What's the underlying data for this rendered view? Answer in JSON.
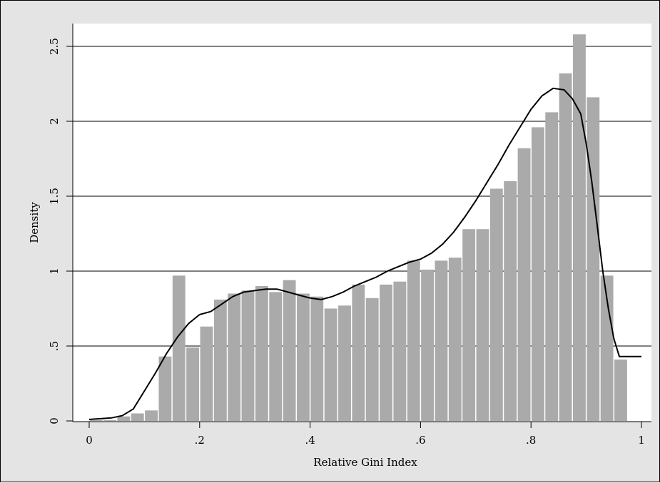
{
  "chart_data": {
    "type": "bar",
    "subtype": "histogram_with_kernel_density",
    "xlabel": "Relative Gini Index",
    "ylabel": "Density",
    "xlim": [
      0,
      1
    ],
    "ylim": [
      0,
      2.5
    ],
    "grid": true,
    "colors": {
      "bars": "#aaaaaa",
      "density_line": "#000000",
      "background": "#e4e4e4",
      "plot_area": "#ffffff"
    },
    "x_ticks": [
      {
        "value": 0,
        "label": "0"
      },
      {
        "value": 0.2,
        "label": ".2"
      },
      {
        "value": 0.4,
        "label": ".4"
      },
      {
        "value": 0.6,
        "label": ".6"
      },
      {
        "value": 0.8,
        "label": ".8"
      },
      {
        "value": 1,
        "label": "1"
      }
    ],
    "y_ticks": [
      {
        "value": 0,
        "label": "0"
      },
      {
        "value": 0.5,
        "label": ".5"
      },
      {
        "value": 1,
        "label": "1"
      },
      {
        "value": 1.5,
        "label": "1.5"
      },
      {
        "value": 2,
        "label": "2"
      },
      {
        "value": 2.5,
        "label": "2.5"
      }
    ],
    "bin_width": 0.025,
    "bins": [
      {
        "x": 0.0,
        "y": 0.005
      },
      {
        "x": 0.025,
        "y": 0.005
      },
      {
        "x": 0.05,
        "y": 0.03
      },
      {
        "x": 0.075,
        "y": 0.05
      },
      {
        "x": 0.1,
        "y": 0.07
      },
      {
        "x": 0.125,
        "y": 0.43
      },
      {
        "x": 0.15,
        "y": 0.97
      },
      {
        "x": 0.175,
        "y": 0.49
      },
      {
        "x": 0.2,
        "y": 0.63
      },
      {
        "x": 0.225,
        "y": 0.81
      },
      {
        "x": 0.25,
        "y": 0.85
      },
      {
        "x": 0.275,
        "y": 0.87
      },
      {
        "x": 0.3,
        "y": 0.9
      },
      {
        "x": 0.325,
        "y": 0.86
      },
      {
        "x": 0.35,
        "y": 0.94
      },
      {
        "x": 0.375,
        "y": 0.85
      },
      {
        "x": 0.4,
        "y": 0.83
      },
      {
        "x": 0.425,
        "y": 0.75
      },
      {
        "x": 0.45,
        "y": 0.77
      },
      {
        "x": 0.475,
        "y": 0.91
      },
      {
        "x": 0.5,
        "y": 0.82
      },
      {
        "x": 0.525,
        "y": 0.91
      },
      {
        "x": 0.55,
        "y": 0.93
      },
      {
        "x": 0.575,
        "y": 1.07
      },
      {
        "x": 0.6,
        "y": 1.01
      },
      {
        "x": 0.625,
        "y": 1.07
      },
      {
        "x": 0.65,
        "y": 1.09
      },
      {
        "x": 0.675,
        "y": 1.28
      },
      {
        "x": 0.7,
        "y": 1.28
      },
      {
        "x": 0.725,
        "y": 1.55
      },
      {
        "x": 0.75,
        "y": 1.6
      },
      {
        "x": 0.775,
        "y": 1.82
      },
      {
        "x": 0.8,
        "y": 1.96
      },
      {
        "x": 0.825,
        "y": 2.06
      },
      {
        "x": 0.85,
        "y": 2.32
      },
      {
        "x": 0.875,
        "y": 2.58
      },
      {
        "x": 0.9,
        "y": 2.16
      },
      {
        "x": 0.925,
        "y": 0.97
      },
      {
        "x": 0.95,
        "y": 0.41
      }
    ],
    "density": {
      "x": [
        0.0,
        0.02,
        0.04,
        0.06,
        0.08,
        0.1,
        0.12,
        0.14,
        0.16,
        0.18,
        0.2,
        0.22,
        0.24,
        0.26,
        0.28,
        0.3,
        0.32,
        0.34,
        0.36,
        0.38,
        0.4,
        0.42,
        0.44,
        0.46,
        0.48,
        0.5,
        0.52,
        0.54,
        0.56,
        0.58,
        0.6,
        0.62,
        0.64,
        0.66,
        0.68,
        0.7,
        0.72,
        0.74,
        0.76,
        0.78,
        0.8,
        0.82,
        0.84,
        0.86,
        0.875,
        0.89,
        0.9,
        0.91,
        0.92,
        0.93,
        0.94,
        0.95,
        0.96,
        0.97,
        0.98,
        0.99,
        1.0
      ],
      "y": [
        0.01,
        0.015,
        0.02,
        0.035,
        0.08,
        0.2,
        0.32,
        0.45,
        0.56,
        0.65,
        0.71,
        0.73,
        0.78,
        0.83,
        0.86,
        0.87,
        0.88,
        0.88,
        0.86,
        0.84,
        0.82,
        0.81,
        0.83,
        0.86,
        0.9,
        0.93,
        0.96,
        1.0,
        1.03,
        1.06,
        1.08,
        1.12,
        1.18,
        1.26,
        1.36,
        1.47,
        1.59,
        1.71,
        1.84,
        1.96,
        2.08,
        2.17,
        2.22,
        2.21,
        2.15,
        2.05,
        1.85,
        1.6,
        1.3,
        1.0,
        0.75,
        0.55,
        0.43,
        0.43,
        0.43,
        0.43,
        0.43
      ]
    }
  }
}
